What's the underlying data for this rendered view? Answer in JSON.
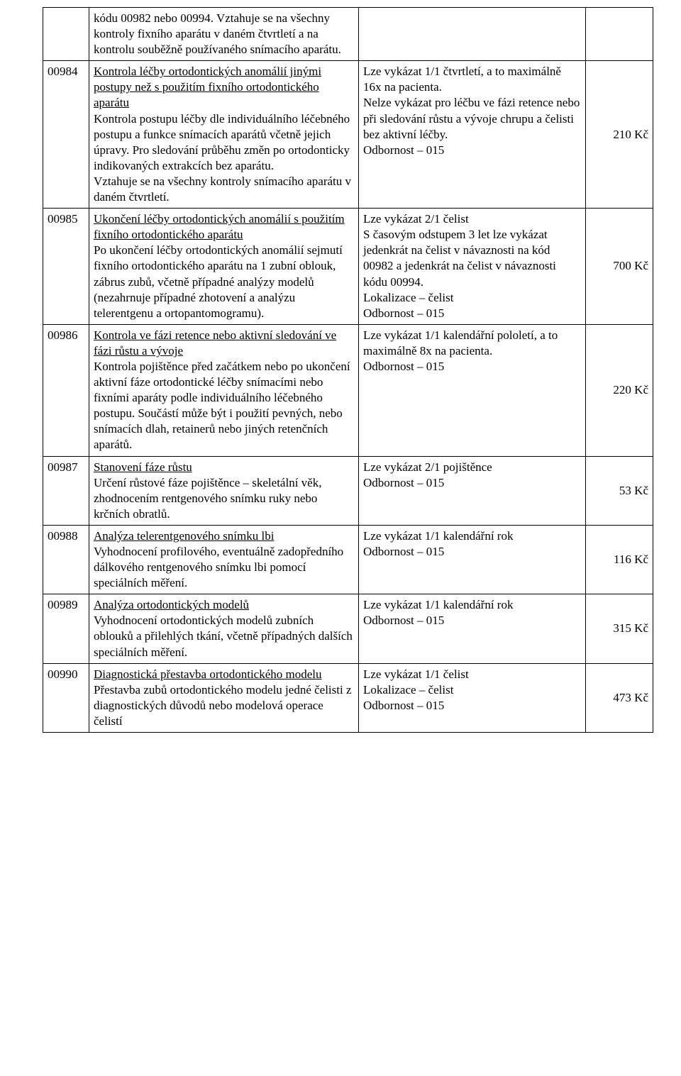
{
  "rows": [
    {
      "code": "",
      "desc_html": "kódu 00982 nebo 00994. Vztahuje se na všechny kontroly fixního aparátu v daném čtvrtletí a na kontrolu souběžně používaného snímacího aparátu.",
      "cond": "",
      "price": ""
    },
    {
      "code": "00984",
      "title": "Kontrola léčby ortodontických anomálií jinými postupy než s použitím fixního ortodontického aparátu",
      "desc_rest": "Kontrola postupu léčby dle individuálního léčebného postupu a funkce snímacích aparátů včetně jejich úpravy. Pro sledování průběhu změn po ortodonticky indikovaných extrakcích bez aparátu.\nVztahuje se na všechny kontroly snímacího aparátu v daném čtvrtletí.",
      "cond": "Lze vykázat 1/1 čtvrtletí, a to maximálně 16x na pacienta.\nNelze vykázat pro léčbu ve fázi retence nebo při sledování růstu a vývoje chrupu a čelisti bez aktivní léčby.\nOdbornost – 015",
      "price": "210 Kč"
    },
    {
      "code": "00985",
      "title": "Ukončení léčby ortodontických anomálií s použitím fixního ortodontického aparátu",
      "desc_rest": "Po ukončení léčby ortodontických anomálií sejmutí fixního ortodontického aparátu na 1 zubní oblouk, zábrus zubů, včetně případné analýzy modelů (nezahrnuje případné zhotovení a analýzu telerentgenu a ortopantomogramu).",
      "cond": "Lze vykázat 2/1 čelist\nS časovým odstupem 3 let lze vykázat jedenkrát na čelist v návaznosti na kód 00982 a jedenkrát na čelist v návaznosti kódu 00994.\nLokalizace – čelist\nOdbornost – 015",
      "price": "700 Kč"
    },
    {
      "code": "00986",
      "title": "Kontrola ve fázi retence nebo aktivní sledování ve fázi růstu a vývoje",
      "desc_rest": "Kontrola pojištěnce před začátkem nebo po ukončení aktivní fáze ortodontické léčby snímacími nebo fixními aparáty podle individuálního léčebného postupu. Součástí může být i použití pevných, nebo snímacích dlah, retainerů nebo jiných retenčních aparátů.",
      "cond": "Lze vykázat 1/1 kalendářní pololetí, a to maximálně 8x na pacienta.\nOdbornost – 015",
      "price": "220 Kč"
    },
    {
      "code": "00987",
      "title": "Stanovení fáze růstu",
      "desc_rest": "Určení růstové fáze pojištěnce – skeletální věk, zhodnocením rentgenového snímku ruky nebo krčních obratlů.",
      "cond": "Lze vykázat 2/1 pojištěnce\nOdbornost – 015",
      "price": "53 Kč"
    },
    {
      "code": "00988",
      "title": "Analýza telerentgenového snímku lbi",
      "desc_rest": "Vyhodnocení profilového, eventuálně zadopředního dálkového rentgenového snímku lbi pomocí speciálních měření.",
      "cond": "Lze vykázat 1/1 kalendářní rok\nOdbornost – 015",
      "price": "116 Kč"
    },
    {
      "code": "00989",
      "title": "Analýza ortodontických modelů",
      "desc_rest": "Vyhodnocení ortodontických modelů zubních oblouků a přilehlých tkání, včetně případných dalších speciálních měření.",
      "cond": "Lze vykázat 1/1 kalendářní rok\nOdbornost – 015",
      "price": "315 Kč"
    },
    {
      "code": "00990",
      "title": "Diagnostická přestavba ortodontického modelu",
      "desc_rest": "Přestavba zubů ortodontického modelu jedné čelisti z diagnostických důvodů nebo modelová operace čelistí",
      "cond": "Lze vykázat 1/1 čelist\nLokalizace – čelist\nOdbornost – 015",
      "price": "473 Kč"
    }
  ]
}
